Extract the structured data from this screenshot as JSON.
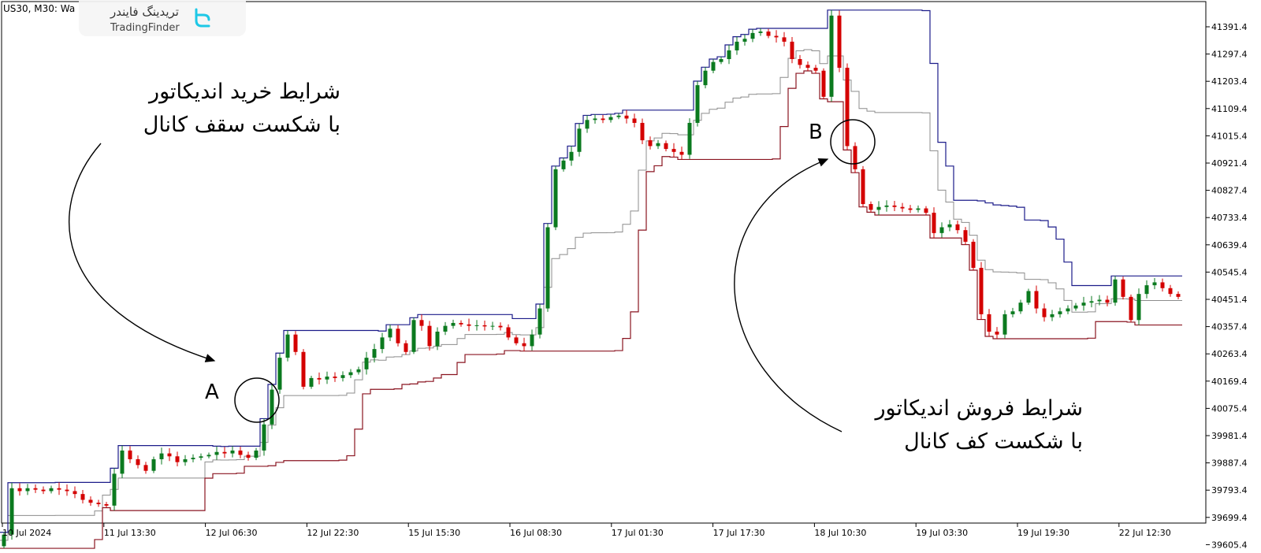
{
  "window": {
    "title": "US30, M30:  Wa"
  },
  "logo": {
    "fa": "تریدینگ فایندر",
    "en": "TradingFinder"
  },
  "annotations": {
    "buy_line1": "شرایط خرید اندیکاتور",
    "buy_line2": "با شکست سقف کانال",
    "sell_line1": "شرایط فروش اندیکاتور",
    "sell_line2": "با شکست کف کانال",
    "label_a": "A",
    "label_b": "B"
  },
  "colors": {
    "bull": "#0b7a1f",
    "bear": "#d40000",
    "upper": "#1c1c8a",
    "lower": "#8a1420",
    "middle": "#8c8c8c"
  },
  "chart_data": {
    "type": "candlestick",
    "symbol": "US30",
    "timeframe": "M30",
    "ylim": [
      39570,
      41480
    ],
    "y_ticks": [
      "41391.4",
      "41297.4",
      "41203.4",
      "41109.4",
      "41015.4",
      "40921.4",
      "40827.4",
      "40733.4",
      "40639.4",
      "40545.4",
      "40451.4",
      "40357.4",
      "40263.4",
      "40169.4",
      "40075.4",
      "39981.4",
      "39887.4",
      "39793.4",
      "39699.4",
      "39605.4"
    ],
    "x_ticks": [
      "10 Jul 2024",
      "11 Jul 13:30",
      "12 Jul 06:30",
      "12 Jul 22:30",
      "15 Jul 15:30",
      "16 Jul 08:30",
      "17 Jul 01:30",
      "17 Jul 17:30",
      "18 Jul 10:30",
      "19 Jul 03:30",
      "19 Jul 19:30",
      "22 Jul 12:30"
    ],
    "closes": [
      39640,
      39800,
      39790,
      39800,
      39795,
      39790,
      39800,
      39795,
      39790,
      39780,
      39760,
      39750,
      39745,
      39740,
      39850,
      39930,
      39900,
      39880,
      39860,
      39900,
      39920,
      39910,
      39890,
      39900,
      39905,
      39910,
      39915,
      39925,
      39920,
      39930,
      39915,
      39905,
      39930,
      40020,
      40140,
      40250,
      40330,
      40270,
      40150,
      40180,
      40175,
      40185,
      40180,
      40190,
      40200,
      40210,
      40250,
      40280,
      40320,
      40350,
      40300,
      40270,
      40380,
      40360,
      40290,
      40340,
      40360,
      40370,
      40365,
      40360,
      40362,
      40358,
      40360,
      40355,
      40320,
      40300,
      40290,
      40330,
      40420,
      40700,
      40900,
      40930,
      40960,
      41040,
      41070,
      41075,
      41070,
      41080,
      41085,
      41075,
      41060,
      41000,
      40980,
      40990,
      40970,
      40960,
      40950,
      41060,
      41190,
      41240,
      41270,
      41280,
      41310,
      41340,
      41350,
      41370,
      41375,
      41360,
      41355,
      41340,
      41280,
      41260,
      41250,
      41240,
      41150,
      41430,
      41250,
      40980,
      40900,
      40780,
      40760,
      40770,
      40775,
      40770,
      40765,
      40760,
      40765,
      40750,
      40680,
      40700,
      40710,
      40690,
      40650,
      40560,
      40400,
      40340,
      40330,
      40400,
      40410,
      40440,
      40480,
      40420,
      40390,
      40400,
      40410,
      40420,
      40430,
      40440,
      40445,
      40450,
      40440,
      40520,
      40460,
      40380,
      40470,
      40500,
      40510,
      40490,
      40470,
      40460
    ],
    "overlays": [
      "upper channel",
      "middle line",
      "lower channel"
    ]
  }
}
